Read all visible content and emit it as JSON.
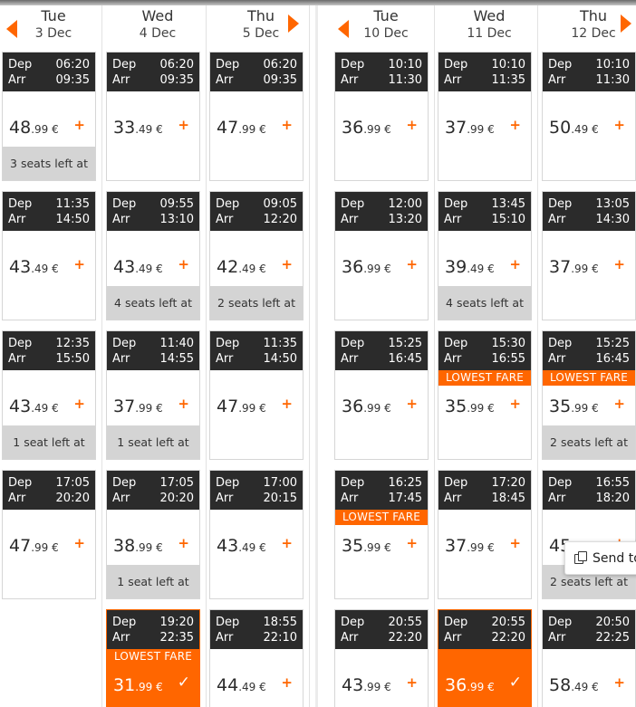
{
  "labels": {
    "dep": "Dep",
    "arr": "Arr"
  },
  "weeks": [
    {
      "days": [
        {
          "name": "Tue",
          "date": "3 Dec",
          "flights": [
            {
              "dep": "06:20",
              "arr": "09:35",
              "price_big": "48",
              "price_small": ".99 €",
              "action": "+",
              "seats": "3 seats left at"
            },
            {
              "dep": "11:35",
              "arr": "14:50",
              "price_big": "43",
              "price_small": ".49 €",
              "action": "+"
            },
            {
              "dep": "12:35",
              "arr": "15:50",
              "price_big": "43",
              "price_small": ".49 €",
              "action": "+",
              "seats": "1 seat left at"
            },
            {
              "dep": "17:05",
              "arr": "20:20",
              "price_big": "47",
              "price_small": ".99 €",
              "action": "+"
            }
          ]
        },
        {
          "name": "Wed",
          "date": "4 Dec",
          "flights": [
            {
              "dep": "06:20",
              "arr": "09:35",
              "price_big": "33",
              "price_small": ".49 €",
              "action": "+"
            },
            {
              "dep": "09:55",
              "arr": "13:10",
              "price_big": "43",
              "price_small": ".49 €",
              "action": "+",
              "seats": "4 seats left at"
            },
            {
              "dep": "11:40",
              "arr": "14:55",
              "price_big": "37",
              "price_small": ".99 €",
              "action": "+",
              "seats": "1 seat left at"
            },
            {
              "dep": "17:05",
              "arr": "20:20",
              "price_big": "38",
              "price_small": ".99 €",
              "action": "+",
              "seats": "1 seat left at"
            },
            {
              "dep": "19:20",
              "arr": "22:35",
              "price_big": "31",
              "price_small": ".99 €",
              "action": "✓",
              "lowest": "LOWEST FARE",
              "selected": true
            }
          ]
        },
        {
          "name": "Thu",
          "date": "5 Dec",
          "flights": [
            {
              "dep": "06:20",
              "arr": "09:35",
              "price_big": "47",
              "price_small": ".99 €",
              "action": "+"
            },
            {
              "dep": "09:05",
              "arr": "12:20",
              "price_big": "42",
              "price_small": ".49 €",
              "action": "+",
              "seats": "2 seats left at"
            },
            {
              "dep": "11:35",
              "arr": "14:50",
              "price_big": "47",
              "price_small": ".99 €",
              "action": "+"
            },
            {
              "dep": "17:00",
              "arr": "20:15",
              "price_big": "43",
              "price_small": ".49 €",
              "action": "+"
            },
            {
              "dep": "18:55",
              "arr": "22:10",
              "price_big": "44",
              "price_small": ".49 €",
              "action": "+"
            }
          ]
        }
      ]
    },
    {
      "days": [
        {
          "name": "Tue",
          "date": "10 Dec",
          "flights": [
            {
              "dep": "10:10",
              "arr": "11:30",
              "price_big": "36",
              "price_small": ".99 €",
              "action": "+"
            },
            {
              "dep": "12:00",
              "arr": "13:20",
              "price_big": "36",
              "price_small": ".99 €",
              "action": "+"
            },
            {
              "dep": "15:25",
              "arr": "16:45",
              "price_big": "36",
              "price_small": ".99 €",
              "action": "+"
            },
            {
              "dep": "16:25",
              "arr": "17:45",
              "price_big": "35",
              "price_small": ".99 €",
              "action": "+",
              "lowest": "LOWEST FARE"
            },
            {
              "dep": "20:55",
              "arr": "22:20",
              "price_big": "43",
              "price_small": ".99 €",
              "action": "+"
            }
          ]
        },
        {
          "name": "Wed",
          "date": "11 Dec",
          "flights": [
            {
              "dep": "10:10",
              "arr": "11:35",
              "price_big": "37",
              "price_small": ".99 €",
              "action": "+"
            },
            {
              "dep": "13:45",
              "arr": "15:10",
              "price_big": "39",
              "price_small": ".49 €",
              "action": "+",
              "seats": "4 seats left at"
            },
            {
              "dep": "15:30",
              "arr": "16:55",
              "price_big": "35",
              "price_small": ".99 €",
              "action": "+",
              "lowest": "LOWEST FARE"
            },
            {
              "dep": "17:20",
              "arr": "18:45",
              "price_big": "37",
              "price_small": ".99 €",
              "action": "+"
            },
            {
              "dep": "20:55",
              "arr": "22:20",
              "price_big": "36",
              "price_small": ".99 €",
              "action": "✓",
              "selected": true
            }
          ]
        },
        {
          "name": "Thu",
          "date": "12 Dec",
          "flights": [
            {
              "dep": "10:10",
              "arr": "11:30",
              "price_big": "50",
              "price_small": ".49 €",
              "action": "+"
            },
            {
              "dep": "13:05",
              "arr": "14:30",
              "price_big": "37",
              "price_small": ".99 €",
              "action": "+"
            },
            {
              "dep": "15:25",
              "arr": "16:45",
              "price_big": "35",
              "price_small": ".99 €",
              "action": "+",
              "lowest": "LOWEST FARE",
              "seats": "2 seats left at"
            },
            {
              "dep": "16:55",
              "arr": "18:20",
              "price_big": "45",
              "price_small": "",
              "action": "+",
              "seats": "2 seats left at"
            },
            {
              "dep": "20:50",
              "arr": "22:25",
              "price_big": "58",
              "price_small": ".49 €",
              "action": "+"
            }
          ]
        }
      ]
    }
  ],
  "tooltip": {
    "label": "Send to",
    "icon": "copy-icon"
  },
  "colors": {
    "accent": "#ff6600",
    "header_bg": "#2b2b2b",
    "seats_bg": "#d4d4d4"
  }
}
